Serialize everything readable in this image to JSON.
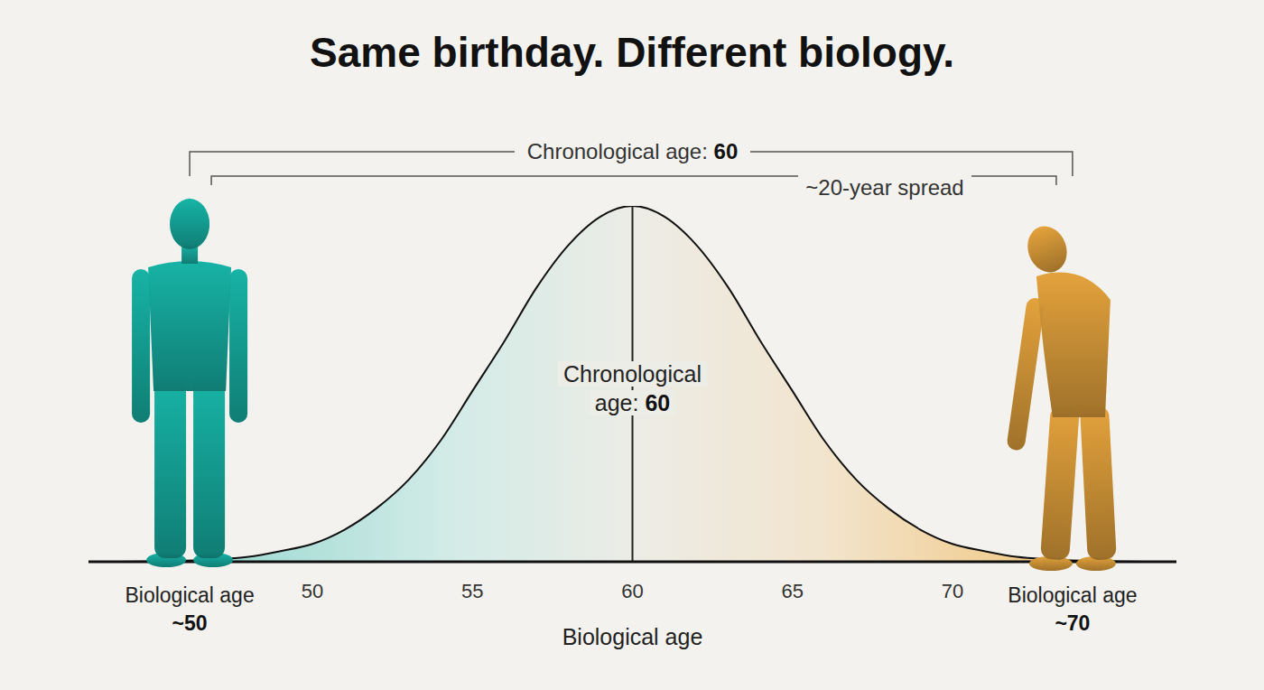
{
  "chart_data": {
    "type": "area",
    "title": "Same birthday. Different biology.",
    "x": [
      43,
      44,
      45,
      46,
      47,
      48,
      49,
      50,
      51,
      52,
      53,
      54,
      55,
      56,
      57,
      58,
      59,
      60,
      61,
      62,
      63,
      64,
      65,
      66,
      67,
      68,
      69,
      70,
      71,
      72,
      73,
      74,
      75,
      76,
      77
    ],
    "values": [
      0,
      0,
      0.1,
      0.3,
      0.7,
      1.4,
      3,
      5,
      9,
      15,
      23,
      34,
      48,
      62,
      77,
      89,
      97,
      100,
      97,
      89,
      77,
      62,
      48,
      34,
      23,
      15,
      9,
      5,
      3,
      1.4,
      0.7,
      0.3,
      0.1,
      0,
      0
    ],
    "xlim": [
      43,
      77
    ],
    "xticks": [
      50,
      55,
      60,
      65,
      70
    ],
    "ylim": [
      0,
      100
    ],
    "x_label": "Biological age",
    "tick_labels": "x",
    "grid": false,
    "annotations": {
      "chronological_age": {
        "label": "Chronological age:",
        "value": 60
      },
      "spread": "~20-year spread",
      "figures": [
        {
          "label": "Biological age",
          "value": 50,
          "value_label": "~50",
          "color": "#17b3a6"
        },
        {
          "label": "Biological age",
          "value": 70,
          "value_label": "~70",
          "color": "#e3a23c"
        }
      ]
    }
  }
}
